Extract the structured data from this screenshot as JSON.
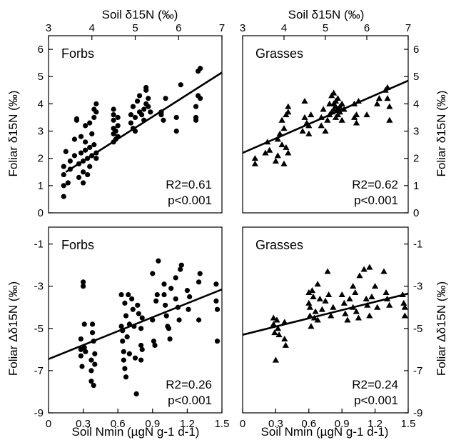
{
  "figure": {
    "top_axis_label": "Soil δ15N (‰)",
    "bottom_axis_label": "Soil Nmin (µgN g-1 d-1)",
    "left_top_ylabel": "Foliar δ15N (‰)",
    "right_top_ylabel": "Foliar δ15N (‰)",
    "left_bottom_ylabel": "Foliar Δδ15N (‰)",
    "right_bottom_ylabel": "Foliar Δδ15N (‰)"
  },
  "chart_data": [
    {
      "type": "scatter",
      "panel": "top-left",
      "title": "Forbs",
      "marker": "circle",
      "xaxis_position": "top",
      "xlabel": "Soil δ15N (‰)",
      "ylabel": "Foliar δ15N (‰)",
      "xlim": [
        3,
        7
      ],
      "ylim": [
        0,
        6.5
      ],
      "xticks": [
        3,
        4,
        5,
        6,
        7
      ],
      "yticks": [
        0,
        1,
        2,
        3,
        4,
        5,
        6
      ],
      "stats": [
        "R2=0.61",
        "p<0.001"
      ],
      "fit": {
        "x": [
          3.4,
          7.0
        ],
        "y": [
          1.5,
          5.15
        ]
      },
      "points": [
        [
          3.35,
          0.6
        ],
        [
          3.35,
          1.0
        ],
        [
          3.35,
          1.4
        ],
        [
          3.35,
          1.7
        ],
        [
          3.4,
          2.25
        ],
        [
          3.45,
          1.1
        ],
        [
          3.5,
          1.6
        ],
        [
          3.5,
          1.9
        ],
        [
          3.6,
          2.1
        ],
        [
          3.6,
          2.7
        ],
        [
          3.65,
          3.4
        ],
        [
          3.65,
          3.45
        ],
        [
          3.7,
          1.3
        ],
        [
          3.7,
          1.8
        ],
        [
          3.75,
          2.2
        ],
        [
          3.75,
          2.8
        ],
        [
          3.8,
          1.1
        ],
        [
          3.8,
          1.5
        ],
        [
          3.8,
          1.9
        ],
        [
          3.85,
          2.3
        ],
        [
          3.85,
          2.6
        ],
        [
          3.85,
          3.2
        ],
        [
          3.9,
          1.4
        ],
        [
          3.9,
          2.0
        ],
        [
          3.95,
          2.4
        ],
        [
          3.95,
          3.3
        ],
        [
          3.95,
          1.7
        ],
        [
          4.0,
          2.1
        ],
        [
          4.0,
          2.9
        ],
        [
          4.05,
          3.5
        ],
        [
          4.05,
          3.8
        ],
        [
          4.05,
          2.5
        ],
        [
          4.1,
          2.0
        ],
        [
          4.1,
          3.7
        ],
        [
          4.1,
          4.0
        ],
        [
          4.1,
          2.2
        ],
        [
          4.5,
          2.6
        ],
        [
          4.5,
          2.9
        ],
        [
          4.5,
          3.1
        ],
        [
          4.5,
          3.4
        ],
        [
          4.5,
          3.6
        ],
        [
          4.5,
          3.8
        ],
        [
          4.55,
          2.7
        ],
        [
          4.55,
          3.0
        ],
        [
          4.6,
          2.8
        ],
        [
          4.6,
          3.2
        ],
        [
          4.6,
          3.5
        ],
        [
          4.9,
          3.6
        ],
        [
          4.9,
          3.3
        ],
        [
          4.95,
          3.1
        ],
        [
          4.95,
          3.9
        ],
        [
          5.0,
          3.0
        ],
        [
          5.0,
          3.5
        ],
        [
          5.05,
          4.1
        ],
        [
          5.1,
          4.3
        ],
        [
          5.1,
          3.7
        ],
        [
          5.15,
          3.6
        ],
        [
          5.2,
          3.4
        ],
        [
          5.2,
          3.8
        ],
        [
          5.25,
          4.5
        ],
        [
          5.25,
          4.6
        ],
        [
          5.25,
          4.0
        ],
        [
          5.3,
          3.9
        ],
        [
          5.3,
          4.2
        ],
        [
          5.35,
          3.7
        ],
        [
          5.6,
          3.7
        ],
        [
          5.6,
          3.6
        ],
        [
          5.65,
          3.4
        ],
        [
          5.7,
          4.2
        ],
        [
          5.95,
          3.0
        ],
        [
          5.95,
          3.5
        ],
        [
          6.05,
          4.7
        ],
        [
          6.4,
          3.4
        ],
        [
          6.4,
          3.5
        ],
        [
          6.4,
          3.9
        ],
        [
          6.45,
          4.3
        ],
        [
          6.45,
          5.2
        ],
        [
          6.5,
          4.2
        ],
        [
          6.5,
          5.3
        ]
      ]
    },
    {
      "type": "scatter",
      "panel": "top-right",
      "title": "Grasses",
      "marker": "triangle",
      "xaxis_position": "top",
      "xlabel": "Soil δ15N (‰)",
      "ylabel": "Foliar δ15N (‰)",
      "xlim": [
        3,
        7
      ],
      "ylim": [
        0,
        6.5
      ],
      "xticks": [
        3,
        4,
        5,
        6,
        7
      ],
      "yticks": [
        0,
        1,
        2,
        3,
        4,
        5,
        6
      ],
      "stats": [
        "R2=0.62",
        "p<0.001"
      ],
      "fit": {
        "x": [
          3.0,
          7.0
        ],
        "y": [
          2.2,
          4.85
        ]
      },
      "points": [
        [
          3.3,
          1.8
        ],
        [
          3.3,
          2.0
        ],
        [
          3.55,
          2.2
        ],
        [
          3.6,
          2.6
        ],
        [
          3.65,
          2.3
        ],
        [
          3.8,
          1.9
        ],
        [
          3.85,
          2.1
        ],
        [
          3.85,
          2.7
        ],
        [
          3.9,
          2.9
        ],
        [
          3.95,
          3.4
        ],
        [
          3.95,
          2.5
        ],
        [
          4.0,
          1.8
        ],
        [
          4.0,
          3.1
        ],
        [
          4.05,
          3.6
        ],
        [
          4.05,
          2.4
        ],
        [
          4.1,
          3.9
        ],
        [
          4.1,
          3.7
        ],
        [
          4.1,
          2.2
        ],
        [
          4.45,
          3.0
        ],
        [
          4.5,
          3.5
        ],
        [
          4.5,
          4.1
        ],
        [
          4.55,
          3.3
        ],
        [
          4.6,
          2.9
        ],
        [
          4.6,
          3.2
        ],
        [
          4.65,
          3.6
        ],
        [
          4.9,
          3.2
        ],
        [
          4.9,
          3.5
        ],
        [
          4.95,
          3.8
        ],
        [
          5.0,
          3.0
        ],
        [
          5.05,
          3.4
        ],
        [
          5.1,
          3.6
        ],
        [
          5.1,
          4.0
        ],
        [
          5.15,
          3.7
        ],
        [
          5.15,
          4.3
        ],
        [
          5.2,
          3.8
        ],
        [
          5.2,
          4.0
        ],
        [
          5.2,
          4.4
        ],
        [
          5.25,
          3.5
        ],
        [
          5.25,
          3.9
        ],
        [
          5.25,
          4.1
        ],
        [
          5.3,
          3.6
        ],
        [
          5.3,
          3.8
        ],
        [
          5.3,
          4.2
        ],
        [
          5.35,
          3.7
        ],
        [
          5.35,
          3.9
        ],
        [
          5.4,
          3.4
        ],
        [
          5.4,
          4.0
        ],
        [
          5.45,
          3.8
        ],
        [
          5.7,
          3.5
        ],
        [
          5.7,
          4.0
        ],
        [
          5.75,
          3.6
        ],
        [
          5.75,
          3.3
        ],
        [
          5.8,
          4.1
        ],
        [
          6.0,
          3.6
        ],
        [
          6.25,
          4.0
        ],
        [
          6.3,
          4.2
        ],
        [
          6.45,
          4.5
        ],
        [
          6.5,
          4.6
        ],
        [
          6.5,
          4.2
        ],
        [
          6.55,
          3.9
        ],
        [
          6.55,
          3.4
        ]
      ]
    },
    {
      "type": "scatter",
      "panel": "bottom-left",
      "title": "Forbs",
      "marker": "circle",
      "xaxis_position": "bottom",
      "xlabel": "Soil Nmin (µgN g-1 d-1)",
      "ylabel": "Foliar Δδ15N (‰)",
      "xlim": [
        0,
        1.5
      ],
      "ylim": [
        -9,
        -0.2
      ],
      "xticks": [
        0,
        0.3,
        0.6,
        0.9,
        1.2,
        1.5
      ],
      "yticks": [
        -1,
        -3,
        -5,
        -7,
        -9
      ],
      "stats": [
        "R2=0.26",
        "p<0.001"
      ],
      "fit": {
        "x": [
          0.0,
          1.5
        ],
        "y": [
          -6.45,
          -3.15
        ]
      },
      "points": [
        [
          0.28,
          -5.5
        ],
        [
          0.28,
          -6.0
        ],
        [
          0.28,
          -6.3
        ],
        [
          0.29,
          -6.8
        ],
        [
          0.3,
          -2.8
        ],
        [
          0.3,
          -3.0
        ],
        [
          0.31,
          -4.8
        ],
        [
          0.31,
          -5.9
        ],
        [
          0.32,
          -6.1
        ],
        [
          0.37,
          -6.5
        ],
        [
          0.37,
          -7.0
        ],
        [
          0.37,
          -7.5
        ],
        [
          0.38,
          -4.8
        ],
        [
          0.38,
          -5.2
        ],
        [
          0.39,
          -5.6
        ],
        [
          0.39,
          -7.7
        ],
        [
          0.4,
          -6.2
        ],
        [
          0.4,
          -6.7
        ],
        [
          0.63,
          -3.4
        ],
        [
          0.63,
          -4.9
        ],
        [
          0.64,
          -5.1
        ],
        [
          0.64,
          -5.6
        ],
        [
          0.65,
          -6.1
        ],
        [
          0.65,
          -6.5
        ],
        [
          0.66,
          -6.9
        ],
        [
          0.66,
          -3.8
        ],
        [
          0.67,
          -4.4
        ],
        [
          0.67,
          -7.3
        ],
        [
          0.68,
          -5.4
        ],
        [
          0.69,
          -3.4
        ],
        [
          0.7,
          -6.2
        ],
        [
          0.7,
          -4.8
        ],
        [
          0.72,
          -3.6
        ],
        [
          0.73,
          -4.1
        ],
        [
          0.74,
          -4.9
        ],
        [
          0.75,
          -6.4
        ],
        [
          0.76,
          -8.1
        ],
        [
          0.77,
          -3.9
        ],
        [
          0.78,
          -4.3
        ],
        [
          0.8,
          -5.0
        ],
        [
          0.8,
          -5.8
        ],
        [
          0.8,
          -6.5
        ],
        [
          0.81,
          -6.0
        ],
        [
          0.81,
          -4.5
        ],
        [
          0.9,
          -2.4
        ],
        [
          0.9,
          -4.6
        ],
        [
          0.91,
          -5.6
        ],
        [
          0.92,
          -5.8
        ],
        [
          0.93,
          -3.7
        ],
        [
          0.94,
          -3.4
        ],
        [
          0.95,
          -1.8
        ],
        [
          1.0,
          -2.9
        ],
        [
          1.0,
          -3.4
        ],
        [
          1.01,
          -3.9
        ],
        [
          1.02,
          -4.4
        ],
        [
          1.03,
          -4.9
        ],
        [
          1.04,
          -5.0
        ],
        [
          1.05,
          -5.5
        ],
        [
          1.06,
          -3.1
        ],
        [
          1.1,
          -2.6
        ],
        [
          1.1,
          -3.6
        ],
        [
          1.12,
          -4.0
        ],
        [
          1.13,
          -4.6
        ],
        [
          1.14,
          -2.2
        ],
        [
          1.15,
          -2.0
        ],
        [
          1.2,
          -3.2
        ],
        [
          1.21,
          -4.1
        ],
        [
          1.22,
          -3.5
        ],
        [
          1.3,
          -2.8
        ],
        [
          1.3,
          -4.6
        ],
        [
          1.31,
          -2.4
        ],
        [
          1.45,
          -2.9
        ],
        [
          1.45,
          -3.7
        ],
        [
          1.46,
          -4.1
        ],
        [
          1.46,
          -5.6
        ]
      ]
    },
    {
      "type": "scatter",
      "panel": "bottom-right",
      "title": "Grasses",
      "marker": "triangle",
      "xaxis_position": "bottom",
      "xlabel": "Soil Nmin (µgN g-1 d-1)",
      "ylabel": "Foliar Δδ15N (‰)",
      "xlim": [
        0,
        1.5
      ],
      "ylim": [
        -9,
        -0.2
      ],
      "xticks": [
        0,
        0.3,
        0.6,
        0.9,
        1.2,
        1.5
      ],
      "yticks": [
        -1,
        -3,
        -5,
        -7,
        -9
      ],
      "stats": [
        "R2=0.24",
        "p<0.001"
      ],
      "fit": {
        "x": [
          0.0,
          1.5
        ],
        "y": [
          -5.3,
          -3.35
        ]
      },
      "points": [
        [
          0.28,
          -4.5
        ],
        [
          0.28,
          -4.8
        ],
        [
          0.29,
          -5.2
        ],
        [
          0.3,
          -6.5
        ],
        [
          0.31,
          -4.6
        ],
        [
          0.32,
          -5.0
        ],
        [
          0.33,
          -5.3
        ],
        [
          0.38,
          -4.7
        ],
        [
          0.38,
          -5.5
        ],
        [
          0.39,
          -5.8
        ],
        [
          0.6,
          -3.3
        ],
        [
          0.6,
          -3.8
        ],
        [
          0.61,
          -4.0
        ],
        [
          0.61,
          -4.4
        ],
        [
          0.62,
          -4.9
        ],
        [
          0.63,
          -3.2
        ],
        [
          0.64,
          -3.5
        ],
        [
          0.65,
          -4.5
        ],
        [
          0.66,
          -4.2
        ],
        [
          0.68,
          -2.9
        ],
        [
          0.68,
          -4.6
        ],
        [
          0.7,
          -3.6
        ],
        [
          0.72,
          -4.1
        ],
        [
          0.75,
          -3.7
        ],
        [
          0.77,
          -2.3
        ],
        [
          0.78,
          -3.4
        ],
        [
          0.8,
          -4.4
        ],
        [
          0.82,
          -4.0
        ],
        [
          0.9,
          -3.4
        ],
        [
          0.92,
          -3.8
        ],
        [
          0.93,
          -4.3
        ],
        [
          0.95,
          -4.6
        ],
        [
          0.97,
          -3.6
        ],
        [
          1.0,
          -3.0
        ],
        [
          1.0,
          -4.0
        ],
        [
          1.02,
          -3.3
        ],
        [
          1.03,
          -4.2
        ],
        [
          1.05,
          -4.5
        ],
        [
          1.06,
          -2.5
        ],
        [
          1.1,
          -2.2
        ],
        [
          1.12,
          -3.6
        ],
        [
          1.13,
          -3.9
        ],
        [
          1.15,
          -2.1
        ],
        [
          1.15,
          -4.4
        ],
        [
          1.17,
          -3.5
        ],
        [
          1.2,
          -3.0
        ],
        [
          1.22,
          -4.0
        ],
        [
          1.28,
          -2.3
        ],
        [
          1.3,
          -3.3
        ],
        [
          1.31,
          -3.6
        ],
        [
          1.33,
          -3.9
        ],
        [
          1.45,
          -3.4
        ],
        [
          1.46,
          -3.8
        ],
        [
          1.47,
          -4.0
        ],
        [
          1.47,
          -4.4
        ]
      ]
    }
  ]
}
